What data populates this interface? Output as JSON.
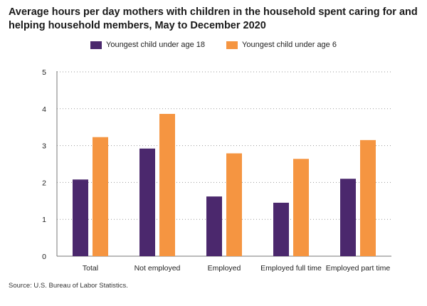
{
  "chart_data": {
    "type": "bar",
    "title": "Average hours per day mothers with children in the household spent caring for and helping household members, May to December 2020",
    "categories": [
      "Total",
      "Not employed",
      "Employed",
      "Employed full time",
      "Employed part time"
    ],
    "series": [
      {
        "name": "Youngest child under age 18",
        "color": "#4b286d",
        "values": [
          2.08,
          2.92,
          1.62,
          1.45,
          2.1
        ]
      },
      {
        "name": "Youngest child under age 6",
        "color": "#f59541",
        "values": [
          3.23,
          3.86,
          2.79,
          2.64,
          3.15
        ]
      }
    ],
    "ylim": [
      0,
      5
    ],
    "yticks": [
      "0",
      "1",
      "2",
      "3",
      "4",
      "5"
    ],
    "grid": true,
    "legend_position": "top-center"
  },
  "source": "Source: U.S. Bureau of Labor Statistics."
}
